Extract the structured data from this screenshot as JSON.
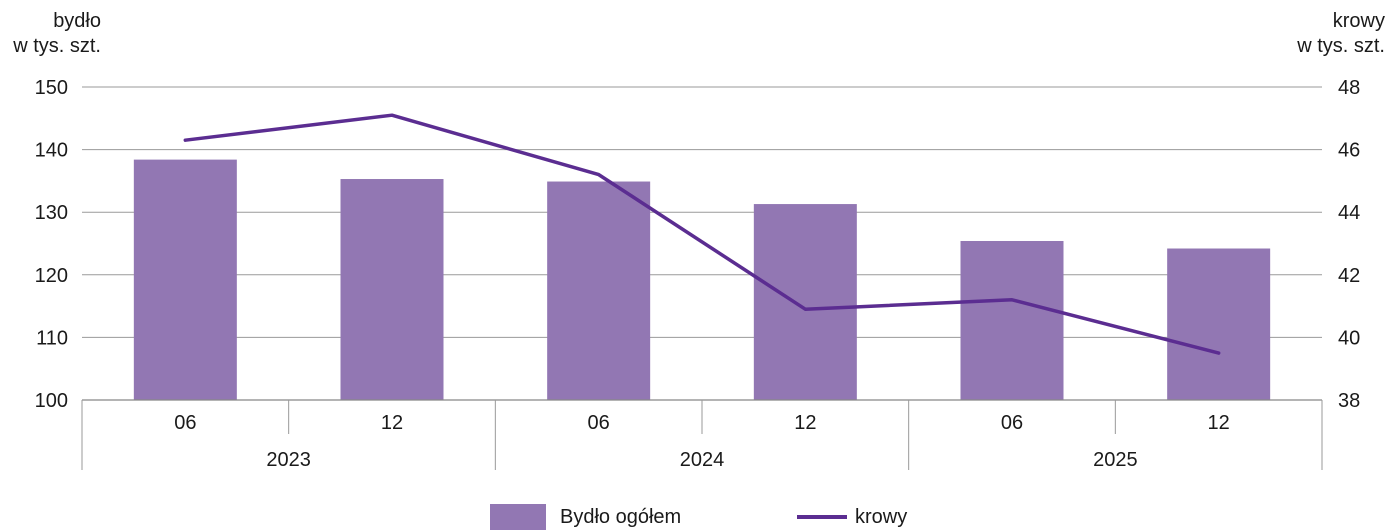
{
  "chart_data": {
    "type": "bar",
    "left_axis_title": [
      "bydło",
      "w tys. szt."
    ],
    "right_axis_title": [
      "krowy",
      "w tys. szt."
    ],
    "months": [
      "06",
      "12",
      "06",
      "12",
      "06",
      "12"
    ],
    "years": [
      "2023",
      "2024",
      "2025"
    ],
    "left_axis": {
      "ticks": [
        100,
        110,
        120,
        130,
        140,
        150
      ],
      "range": [
        100,
        150
      ]
    },
    "right_axis": {
      "ticks": [
        38,
        40,
        42,
        44,
        46,
        48
      ],
      "range": [
        38,
        48
      ]
    },
    "series": [
      {
        "name": "Bydło ogółem",
        "type": "bar",
        "axis": "left",
        "color": "#9277b3",
        "values": [
          138.4,
          135.3,
          134.9,
          131.3,
          125.4,
          124.2
        ]
      },
      {
        "name": "krowy",
        "type": "line",
        "axis": "right",
        "color": "#5b2d91",
        "values": [
          46.3,
          47.1,
          45.2,
          40.9,
          41.2,
          39.5
        ]
      }
    ],
    "grid": true,
    "legend_position": "bottom"
  }
}
